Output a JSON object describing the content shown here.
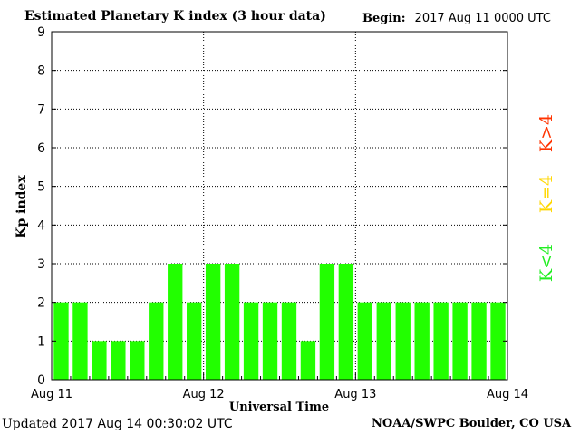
{
  "header": {
    "title": "Estimated Planetary K index (3 hour data)",
    "begin_label": "Begin:",
    "begin_value": "2017 Aug 11 0000 UTC"
  },
  "footer": {
    "updated_label": "Updated",
    "updated_value": "2017 Aug 14 00:30:02 UTC",
    "credit": "NOAA/SWPC Boulder, CO USA"
  },
  "legend": [
    {
      "label": "K>4",
      "color": "#ff3300"
    },
    {
      "label": "K=4",
      "color": "#ffd700"
    },
    {
      "label": "K<4",
      "color": "#22ee22"
    }
  ],
  "chart_data": {
    "type": "bar",
    "xlabel": "Universal Time",
    "ylabel": "Kp index",
    "ylim": [
      0,
      9
    ],
    "yticks": [
      0,
      1,
      2,
      3,
      4,
      5,
      6,
      7,
      8,
      9
    ],
    "x_ticks": [
      "Aug 11",
      "Aug 12",
      "Aug 13",
      "Aug 14"
    ],
    "grid": "dotted",
    "bar_color": "#22ff00",
    "values": [
      2,
      2,
      1,
      1,
      1,
      2,
      3,
      2,
      3,
      3,
      2,
      2,
      2,
      1,
      3,
      3,
      2,
      2,
      2,
      2,
      2,
      2,
      2,
      2
    ]
  }
}
